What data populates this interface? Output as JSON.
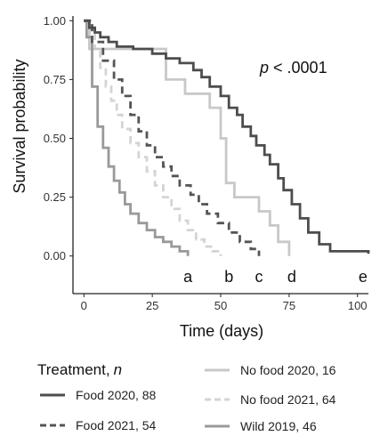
{
  "chart_data": {
    "type": "line",
    "xlabel": "Time (days)",
    "ylabel": "Survival probability",
    "xlim": [
      -4,
      104
    ],
    "ylim": [
      -0.16,
      1.02
    ],
    "xticks": [
      "0",
      "25",
      "50",
      "75",
      "100"
    ],
    "yticks": [
      "0.00",
      "0.25",
      "0.50",
      "0.75",
      "1.00"
    ],
    "annotation_p": "p",
    "annotation_rest": " < .0001",
    "legend_title": "Treatment,",
    "legend_title_n": "n",
    "series": [
      {
        "name": "Food 2020, 88",
        "color": "#4d4d4d",
        "dash": "solid",
        "end_letter": "e",
        "letter_x": 102,
        "x": [
          0,
          2,
          4,
          6,
          9,
          12,
          18,
          25,
          30,
          35,
          40,
          43,
          46,
          50,
          53,
          56,
          58,
          61,
          63,
          66,
          68,
          71,
          73,
          76,
          79,
          82,
          86,
          90,
          104
        ],
        "y": [
          1.0,
          0.97,
          0.95,
          0.93,
          0.91,
          0.89,
          0.88,
          0.86,
          0.84,
          0.82,
          0.79,
          0.76,
          0.72,
          0.68,
          0.63,
          0.6,
          0.55,
          0.51,
          0.47,
          0.43,
          0.39,
          0.33,
          0.28,
          0.22,
          0.16,
          0.1,
          0.05,
          0.02,
          0.01
        ]
      },
      {
        "name": "Food 2021, 54",
        "color": "#555555",
        "dash": "dash",
        "end_letter": "c",
        "letter_x": 64,
        "x": [
          0,
          3,
          7,
          11,
          14,
          17,
          20,
          23,
          26,
          29,
          32,
          35,
          39,
          42,
          45,
          49,
          53,
          57,
          61,
          64
        ],
        "y": [
          1.0,
          0.91,
          0.83,
          0.75,
          0.68,
          0.6,
          0.53,
          0.47,
          0.42,
          0.38,
          0.34,
          0.3,
          0.26,
          0.22,
          0.18,
          0.14,
          0.1,
          0.06,
          0.03,
          0.0
        ]
      },
      {
        "name": "No food 2020, 16",
        "color": "#c8c8c8",
        "dash": "solid",
        "end_letter": "d",
        "letter_x": 76,
        "x": [
          0,
          2,
          25,
          30,
          37,
          46,
          50,
          52,
          55,
          64,
          68,
          71,
          75
        ],
        "y": [
          1.0,
          0.88,
          0.88,
          0.75,
          0.69,
          0.63,
          0.5,
          0.31,
          0.25,
          0.19,
          0.13,
          0.06,
          0.0
        ]
      },
      {
        "name": "No food 2021, 64",
        "color": "#d4d4d4",
        "dash": "dash",
        "end_letter": "b",
        "letter_x": 53,
        "x": [
          0,
          2,
          4,
          6,
          8,
          10,
          12,
          14,
          17,
          20,
          23,
          26,
          29,
          32,
          35,
          38,
          41,
          44,
          47,
          50
        ],
        "y": [
          1.0,
          0.95,
          0.88,
          0.8,
          0.72,
          0.66,
          0.6,
          0.54,
          0.48,
          0.42,
          0.36,
          0.3,
          0.25,
          0.2,
          0.15,
          0.11,
          0.07,
          0.04,
          0.02,
          0.0
        ]
      },
      {
        "name": "Wild 2019, 46",
        "color": "#999999",
        "dash": "solid",
        "end_letter": "a",
        "letter_x": 38,
        "x": [
          0,
          1,
          3,
          5,
          7,
          9,
          11,
          13,
          15,
          17,
          20,
          23,
          26,
          29,
          32,
          35,
          38
        ],
        "y": [
          1.0,
          0.93,
          0.72,
          0.55,
          0.46,
          0.38,
          0.32,
          0.27,
          0.22,
          0.18,
          0.14,
          0.11,
          0.08,
          0.06,
          0.04,
          0.02,
          0.0
        ]
      }
    ]
  }
}
